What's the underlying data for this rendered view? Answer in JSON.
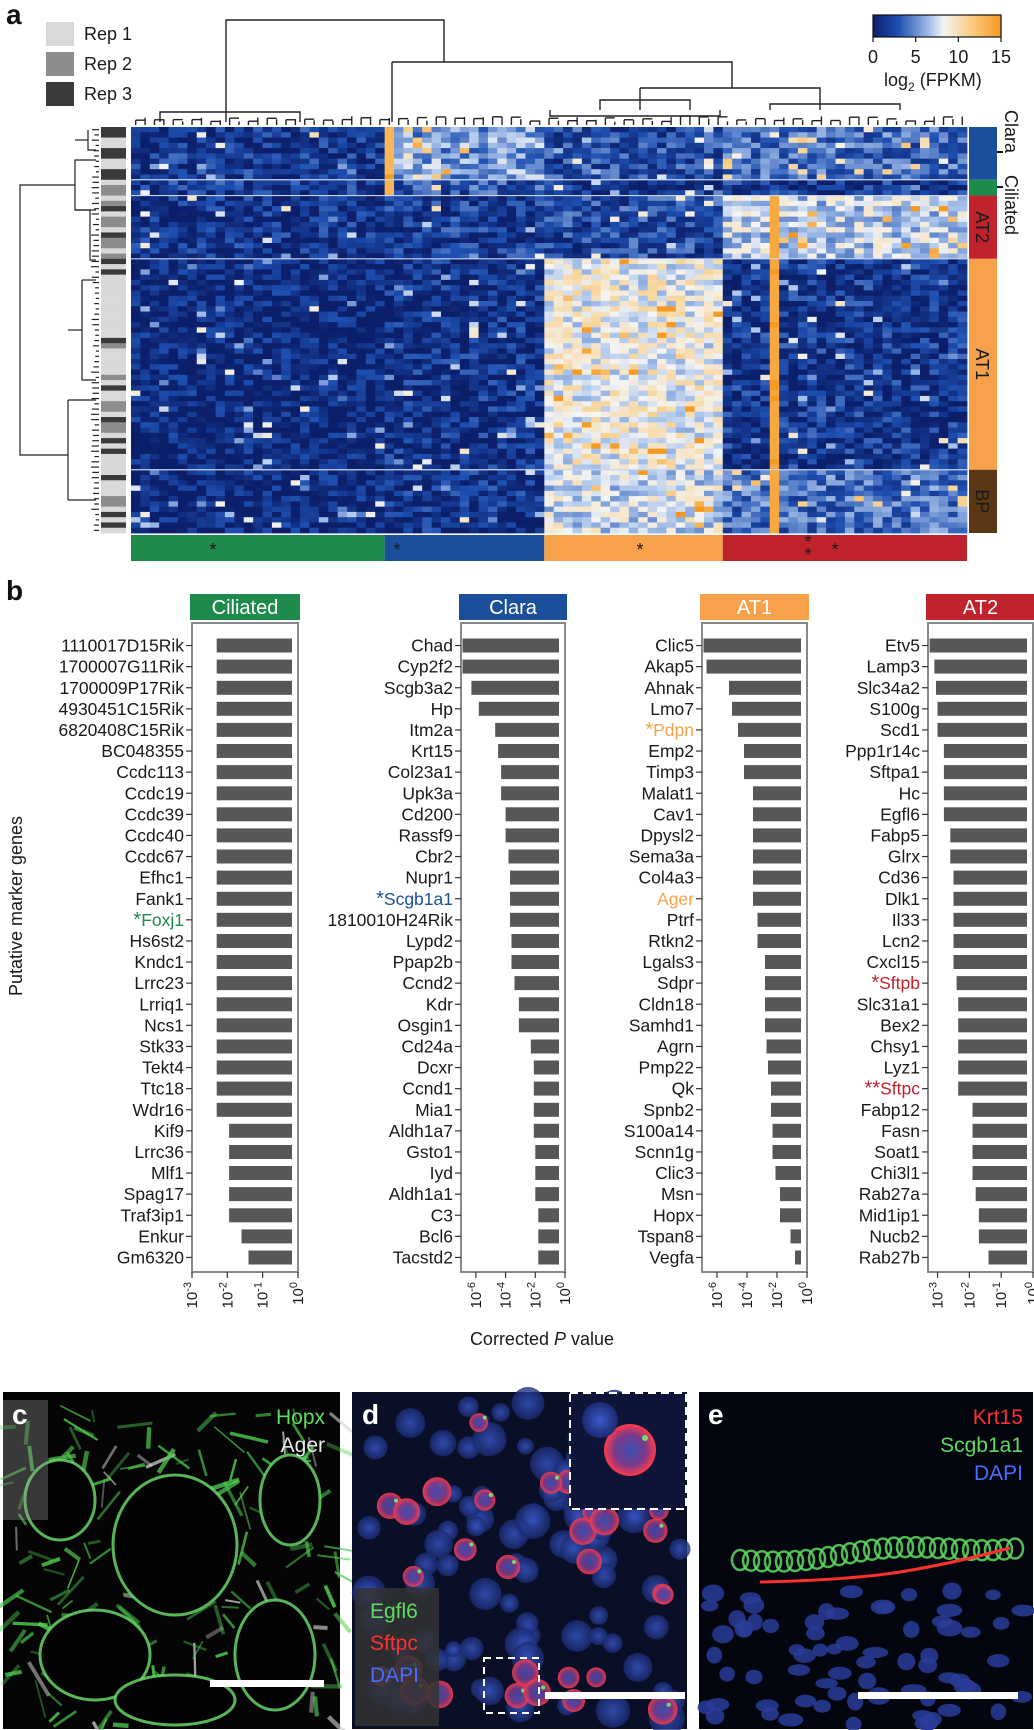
{
  "panels": {
    "a": "a",
    "b": "b",
    "c": "c",
    "d": "d",
    "e": "e"
  },
  "heatmap": {
    "replicates": [
      {
        "label": "Rep 1",
        "color": "#d9d9d9"
      },
      {
        "label": "Rep 2",
        "color": "#8c8c8c"
      },
      {
        "label": "Rep 3",
        "color": "#3a3a3a"
      }
    ],
    "colorbar": {
      "ticks": [
        "0",
        "5",
        "10",
        "15"
      ],
      "label_main": "log",
      "label_sub": "2",
      "label_rest": " (FPKM)",
      "range": [
        0,
        15
      ]
    },
    "row_groups": [
      {
        "label": "Clara",
        "color": "#1b4e9b",
        "text_color": "#1b4e9b",
        "rows": 10
      },
      {
        "label": "Ciliated",
        "color": "#1e8a4c",
        "text_color": "#1e8a4c",
        "rows": 3
      },
      {
        "label": "AT2",
        "color": "#c0232c",
        "text_color": "#ffffff",
        "rows": 12
      },
      {
        "label": "AT1",
        "color": "#f7a24a",
        "text_color": "#ffffff",
        "rows": 40
      },
      {
        "label": "BP",
        "color": "#5c3714",
        "text_color": "#ffffff",
        "rows": 12
      }
    ],
    "column_groups": [
      {
        "marker": "Ciliated",
        "color": "#1e8a4c",
        "columns": 27,
        "stars": [
          "*"
        ]
      },
      {
        "marker": "Clara",
        "color": "#1b4e9b",
        "columns": 17,
        "stars": [
          "*"
        ]
      },
      {
        "marker": "AT1",
        "color": "#f7a24a",
        "columns": 19,
        "stars": [
          "*"
        ]
      },
      {
        "marker": "AT2",
        "color": "#c0232c",
        "columns": 26,
        "stars": [
          "*",
          "*",
          "*"
        ]
      }
    ]
  },
  "chart_data": {
    "type": "bar",
    "ylabel": "Putative marker genes",
    "xlabel_pre": "Corrected ",
    "xlabel_italic": "P",
    "xlabel_post": " value",
    "scale": "log",
    "panels": [
      {
        "title": "Ciliated",
        "color": "#1e8a4c",
        "xlim_exp": [
          -3,
          0
        ],
        "tick_exps": [
          "-3",
          "-2",
          "-1",
          "0"
        ],
        "genes": [
          "1110017D15Rik",
          "1700007G11Rik",
          "1700009P17Rik",
          "4930451C15Rik",
          "6820408C15Rik",
          "BC048355",
          "Ccdc113",
          "Ccdc19",
          "Ccdc39",
          "Ccdc40",
          "Ccdc67",
          "Efhc1",
          "Fank1",
          "Foxj1",
          "Hs6st2",
          "Kndc1",
          "Lrrc23",
          "Lrriq1",
          "Ncs1",
          "Stk33",
          "Tekt4",
          "Ttc18",
          "Wdr16",
          "Kif9",
          "Lrrc36",
          "Mlf1",
          "Spag17",
          "Traf3ip1",
          "Enkur",
          "Gm6320"
        ],
        "highlight": {
          "Foxj1": "*"
        },
        "log10_p": [
          -2.3,
          -2.3,
          -2.3,
          -2.3,
          -2.3,
          -2.3,
          -2.3,
          -2.3,
          -2.3,
          -2.3,
          -2.3,
          -2.3,
          -2.3,
          -2.3,
          -2.3,
          -2.3,
          -2.3,
          -2.3,
          -2.3,
          -2.3,
          -2.3,
          -2.3,
          -2.3,
          -1.95,
          -1.95,
          -1.95,
          -1.95,
          -1.95,
          -1.6,
          -1.4
        ]
      },
      {
        "title": "Clara",
        "color": "#1b4e9b",
        "xlim_exp": [
          -7,
          0
        ],
        "tick_exps": [
          "-6",
          "-4",
          "-2",
          "0"
        ],
        "genes": [
          "Chad",
          "Cyp2f2",
          "Scgb3a2",
          "Hp",
          "Itm2a",
          "Krt15",
          "Col23a1",
          "Upk3a",
          "Cd200",
          "Rassf9",
          "Cbr2",
          "Nupr1",
          "Scgb1a1",
          "1810010H24Rik",
          "Lypd2",
          "Ppap2b",
          "Ccnd2",
          "Kdr",
          "Osgin1",
          "Cd24a",
          "Dcxr",
          "Ccnd1",
          "Mia1",
          "Aldh1a7",
          "Gsto1",
          "Iyd",
          "Aldh1a1",
          "C3",
          "Bcl6",
          "Tacstd2"
        ],
        "highlight": {
          "Scgb1a1": "*"
        },
        "log10_p": [
          -6.9,
          -6.9,
          -6.3,
          -5.8,
          -4.7,
          -4.5,
          -4.3,
          -4.3,
          -4.0,
          -4.0,
          -3.8,
          -3.7,
          -3.7,
          -3.7,
          -3.6,
          -3.6,
          -3.4,
          -3.1,
          -3.1,
          -2.3,
          -2.1,
          -2.1,
          -2.1,
          -2.1,
          -2.0,
          -2.0,
          -2.0,
          -1.8,
          -1.8,
          -1.8
        ]
      },
      {
        "title": "AT1",
        "color": "#f7a24a",
        "xlim_exp": [
          -7,
          0
        ],
        "tick_exps": [
          "-6",
          "-4",
          "-2",
          "0"
        ],
        "genes": [
          "Clic5",
          "Akap5",
          "Ahnak",
          "Lmo7",
          "Pdpn",
          "Emp2",
          "Timp3",
          "Malat1",
          "Cav1",
          "Dpysl2",
          "Sema3a",
          "Col4a3",
          "Ager",
          "Ptrf",
          "Rtkn2",
          "Lgals3",
          "Sdpr",
          "Cldn18",
          "Samhd1",
          "Agrn",
          "Pmp22",
          "Qk",
          "Spnb2",
          "S100a14",
          "Scnn1g",
          "Clic3",
          "Msn",
          "Hopx",
          "Tspan8",
          "Vegfa"
        ],
        "highlight": {
          "Pdpn": "*",
          "Ager": ""
        },
        "log10_p": [
          -6.9,
          -6.7,
          -5.2,
          -5.0,
          -4.6,
          -4.2,
          -4.2,
          -3.6,
          -3.6,
          -3.6,
          -3.6,
          -3.6,
          -3.6,
          -3.3,
          -3.3,
          -2.8,
          -2.8,
          -2.8,
          -2.8,
          -2.7,
          -2.6,
          -2.4,
          -2.4,
          -2.3,
          -2.3,
          -2.1,
          -1.8,
          -1.8,
          -1.1,
          -0.8
        ]
      },
      {
        "title": "AT2",
        "color": "#c0232c",
        "xlim_exp": [
          -3.3,
          0
        ],
        "tick_exps": [
          "-3",
          "-2",
          "-1",
          "0"
        ],
        "genes": [
          "Etv5",
          "Lamp3",
          "Slc34a2",
          "S100g",
          "Scd1",
          "Ppp1r14c",
          "Sftpa1",
          "Hc",
          "Egfl6",
          "Fabp5",
          "Glrx",
          "Cd36",
          "Dlk1",
          "Il33",
          "Lcn2",
          "Cxcl15",
          "Sftpb",
          "Slc31a1",
          "Bex2",
          "Chsy1",
          "Lyz1",
          "Sftpc",
          "Fabp12",
          "Fasn",
          "Soat1",
          "Chi3l1",
          "Rab27a",
          "Mid1ip1",
          "Nucb2",
          "Rab27b"
        ],
        "highlight": {
          "Sftpb": "*",
          "Sftpc": "**"
        },
        "log10_p": [
          -3.25,
          -3.1,
          -3.05,
          -3.0,
          -3.0,
          -2.8,
          -2.8,
          -2.8,
          -2.8,
          -2.6,
          -2.6,
          -2.5,
          -2.5,
          -2.5,
          -2.5,
          -2.5,
          -2.4,
          -2.35,
          -2.35,
          -2.35,
          -2.35,
          -2.35,
          -1.9,
          -1.9,
          -1.9,
          -1.9,
          -1.8,
          -1.7,
          -1.7,
          -1.4
        ]
      }
    ]
  },
  "micrographs": {
    "c": {
      "stains": [
        {
          "name": "Hopx",
          "color": "#5fdc5f"
        },
        {
          "name": "Ager",
          "color": "#e8e8e8"
        }
      ]
    },
    "d": {
      "stains": [
        {
          "name": "Egfl6",
          "color": "#5fdc5f"
        },
        {
          "name": "Sftpc",
          "color": "#ff3030"
        },
        {
          "name": "DAPI",
          "color": "#4a6cff"
        }
      ]
    },
    "e": {
      "stains": [
        {
          "name": "Krt15",
          "color": "#ff3030"
        },
        {
          "name": "Scgb1a1",
          "color": "#5fdc5f"
        },
        {
          "name": "DAPI",
          "color": "#4a6cff"
        }
      ]
    }
  }
}
